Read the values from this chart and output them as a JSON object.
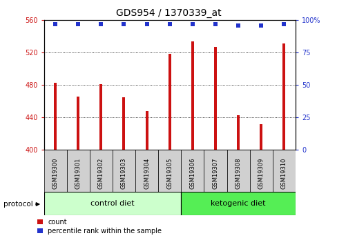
{
  "title": "GDS954 / 1370339_at",
  "samples": [
    "GSM19300",
    "GSM19301",
    "GSM19302",
    "GSM19303",
    "GSM19304",
    "GSM19305",
    "GSM19306",
    "GSM19307",
    "GSM19308",
    "GSM19309",
    "GSM19310"
  ],
  "counts": [
    483,
    466,
    481,
    465,
    448,
    519,
    534,
    527,
    443,
    432,
    531
  ],
  "percentiles": [
    97,
    97,
    97,
    97,
    97,
    97,
    97,
    97,
    96,
    96,
    97
  ],
  "ylim_left": [
    400,
    560
  ],
  "ylim_right": [
    0,
    100
  ],
  "yticks_left": [
    400,
    440,
    480,
    520,
    560
  ],
  "yticks_right": [
    0,
    25,
    50,
    75,
    100
  ],
  "bar_color": "#cc1111",
  "dot_color": "#2233cc",
  "n_control": 6,
  "control_label": "control diet",
  "ketogenic_label": "ketogenic diet",
  "protocol_label": "protocol",
  "legend_count_label": "count",
  "legend_pct_label": "percentile rank within the sample",
  "bg_plot": "#ffffff",
  "bg_sample_box": "#d0d0d0",
  "bg_label_control": "#ccffcc",
  "bg_label_ketogenic": "#55ee55",
  "title_fontsize": 10,
  "tick_fontsize": 7,
  "sample_fontsize": 6,
  "label_fontsize": 8
}
